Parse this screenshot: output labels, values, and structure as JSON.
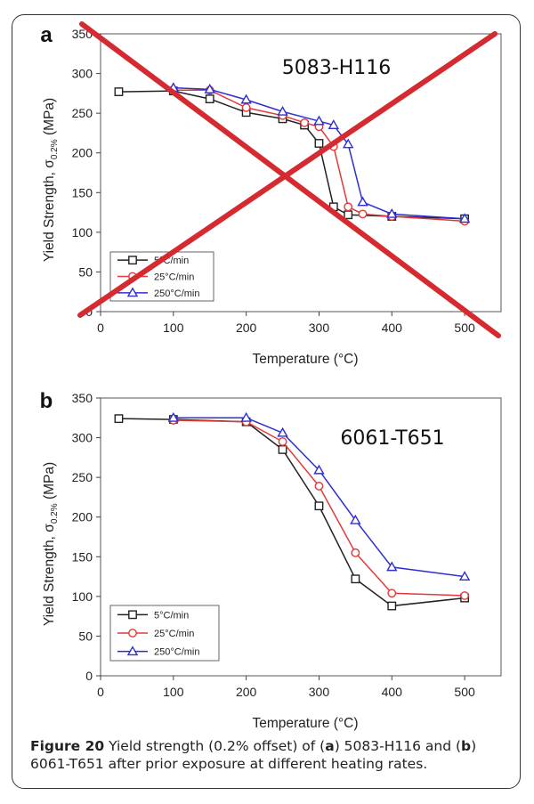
{
  "chart_data": [
    {
      "panel_label": "a",
      "type": "line",
      "annotation": "5083-H116",
      "xlabel": "Temperature",
      "xlabel_unit": "(°C)",
      "ylabel": "Yield Strength, σ",
      "ylabel_sub": "0.2%",
      "ylabel_unit": "(MPa)",
      "xlim": [
        0,
        550
      ],
      "ylim": [
        0,
        350
      ],
      "xticks": [
        0,
        100,
        200,
        300,
        400,
        500
      ],
      "yticks": [
        0,
        50,
        100,
        150,
        200,
        250,
        300,
        350
      ],
      "crossed_out": true,
      "cross_color": "#d42a30",
      "series": [
        {
          "name": "5°C/min",
          "marker": "square",
          "color": "#222222",
          "x": [
            25,
            100,
            150,
            200,
            250,
            280,
            300,
            320,
            340,
            400,
            500
          ],
          "y": [
            277,
            278,
            268,
            251,
            243,
            235,
            212,
            132,
            122,
            120,
            117
          ]
        },
        {
          "name": "25°C/min",
          "marker": "circle",
          "color": "#e03a3a",
          "x": [
            100,
            150,
            200,
            250,
            280,
            300,
            320,
            340,
            360,
            400,
            500
          ],
          "y": [
            279,
            279,
            257,
            247,
            238,
            233,
            208,
            132,
            123,
            120,
            114
          ]
        },
        {
          "name": "250°C/min",
          "marker": "triangle",
          "color": "#2f2fd0",
          "x": [
            100,
            150,
            200,
            250,
            300,
            320,
            340,
            360,
            400,
            500
          ],
          "y": [
            282,
            280,
            267,
            252,
            240,
            235,
            211,
            138,
            123,
            117
          ]
        }
      ]
    },
    {
      "panel_label": "b",
      "type": "line",
      "annotation": "6061-T651",
      "xlabel": "Temperature",
      "xlabel_unit": "(°C)",
      "ylabel": "Yield Strength, σ",
      "ylabel_sub": "0.2%",
      "ylabel_unit": "(MPa)",
      "xlim": [
        0,
        550
      ],
      "ylim": [
        0,
        350
      ],
      "xticks": [
        0,
        100,
        200,
        300,
        400,
        500
      ],
      "yticks": [
        0,
        50,
        100,
        150,
        200,
        250,
        300,
        350
      ],
      "crossed_out": false,
      "series": [
        {
          "name": "5°C/min",
          "marker": "square",
          "color": "#222222",
          "x": [
            25,
            100,
            200,
            250,
            300,
            350,
            400,
            500
          ],
          "y": [
            324,
            323,
            320,
            285,
            214,
            122,
            88,
            98
          ]
        },
        {
          "name": "25°C/min",
          "marker": "circle",
          "color": "#e03a3a",
          "x": [
            100,
            200,
            250,
            300,
            350,
            400,
            500
          ],
          "y": [
            322,
            320,
            295,
            239,
            155,
            104,
            101
          ]
        },
        {
          "name": "250°C/min",
          "marker": "triangle",
          "color": "#2f2fd0",
          "x": [
            100,
            200,
            250,
            300,
            350,
            400,
            500
          ],
          "y": [
            325,
            325,
            306,
            259,
            196,
            137,
            125
          ]
        }
      ]
    }
  ],
  "caption": {
    "figure_label": "Figure 20",
    "text_1": " Yield strength (0.2% offset) of (",
    "panel_a": "a",
    "text_2": ") 5083-H116 and (",
    "panel_b": "b",
    "text_3": ") 6061-T651 after prior exposure at different heating rates."
  }
}
